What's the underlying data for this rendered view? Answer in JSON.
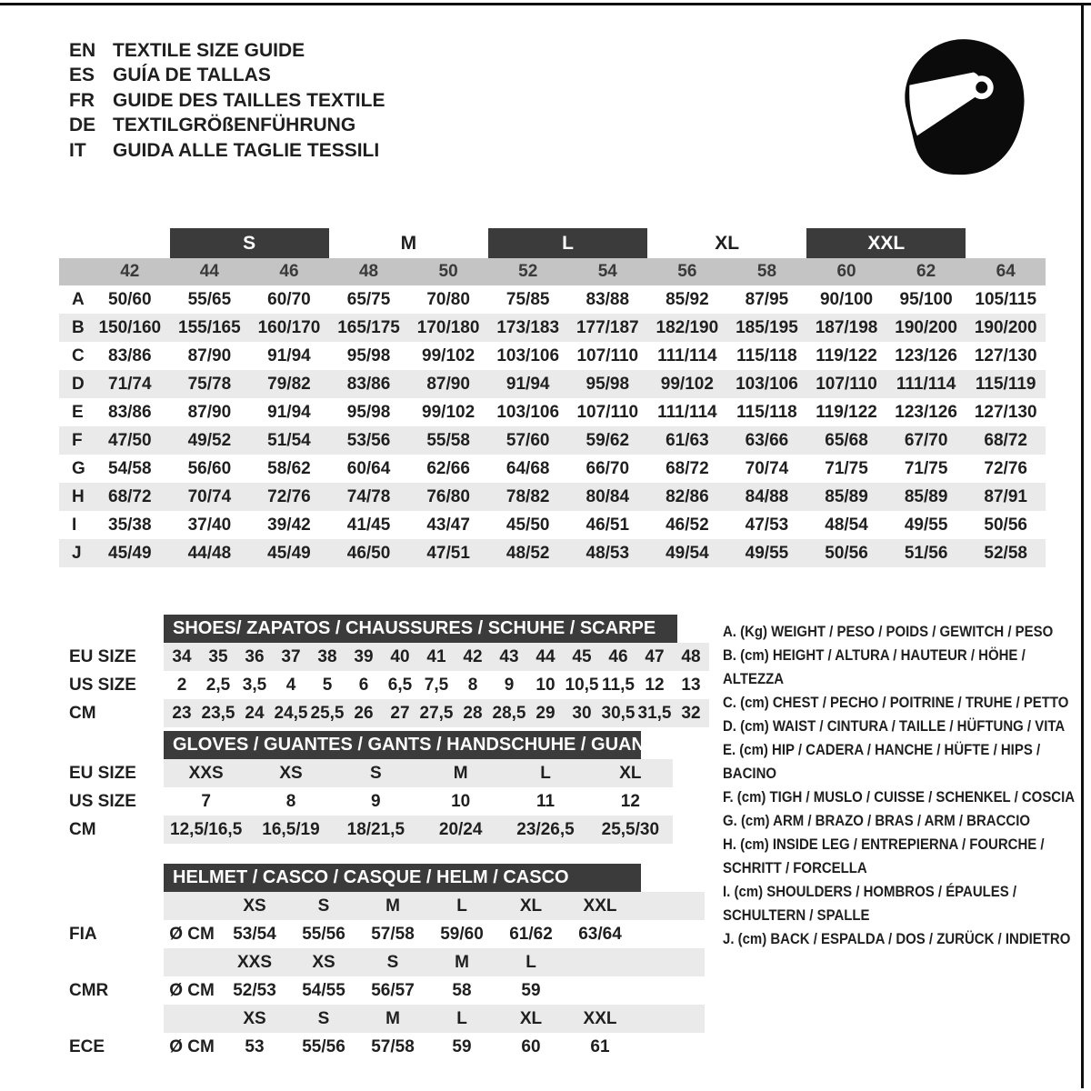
{
  "languages": [
    {
      "code": "EN",
      "title": "TEXTILE SIZE GUIDE"
    },
    {
      "code": "ES",
      "title": "GUÍA DE TALLAS"
    },
    {
      "code": "FR",
      "title": "GUIDE DES TAILLES TEXTILE"
    },
    {
      "code": "DE",
      "title": "TEXTILGRÖßENFÜHRUNG"
    },
    {
      "code": "IT",
      "title": "GUIDA ALLE TAGLIE TESSILI"
    }
  ],
  "size_table": {
    "groups": [
      {
        "label": "S",
        "dark": true
      },
      {
        "label": "M",
        "dark": false
      },
      {
        "label": "L",
        "dark": true
      },
      {
        "label": "XL",
        "dark": false
      },
      {
        "label": "XXL",
        "dark": true
      }
    ],
    "sizes": [
      "42",
      "44",
      "46",
      "48",
      "50",
      "52",
      "54",
      "56",
      "58",
      "60",
      "62",
      "64"
    ],
    "rows": [
      {
        "letter": "A",
        "values": [
          "50/60",
          "55/65",
          "60/70",
          "65/75",
          "70/80",
          "75/85",
          "83/88",
          "85/92",
          "87/95",
          "90/100",
          "95/100",
          "105/115"
        ]
      },
      {
        "letter": "B",
        "values": [
          "150/160",
          "155/165",
          "160/170",
          "165/175",
          "170/180",
          "173/183",
          "177/187",
          "182/190",
          "185/195",
          "187/198",
          "190/200",
          "190/200"
        ]
      },
      {
        "letter": "C",
        "values": [
          "83/86",
          "87/90",
          "91/94",
          "95/98",
          "99/102",
          "103/106",
          "107/110",
          "111/114",
          "115/118",
          "119/122",
          "123/126",
          "127/130"
        ]
      },
      {
        "letter": "D",
        "values": [
          "71/74",
          "75/78",
          "79/82",
          "83/86",
          "87/90",
          "91/94",
          "95/98",
          "99/102",
          "103/106",
          "107/110",
          "111/114",
          "115/119"
        ]
      },
      {
        "letter": "E",
        "values": [
          "83/86",
          "87/90",
          "91/94",
          "95/98",
          "99/102",
          "103/106",
          "107/110",
          "111/114",
          "115/118",
          "119/122",
          "123/126",
          "127/130"
        ]
      },
      {
        "letter": "F",
        "values": [
          "47/50",
          "49/52",
          "51/54",
          "53/56",
          "55/58",
          "57/60",
          "59/62",
          "61/63",
          "63/66",
          "65/68",
          "67/70",
          "68/72"
        ]
      },
      {
        "letter": "G",
        "values": [
          "54/58",
          "56/60",
          "58/62",
          "60/64",
          "62/66",
          "64/68",
          "66/70",
          "68/72",
          "70/74",
          "71/75",
          "71/75",
          "72/76"
        ]
      },
      {
        "letter": "H",
        "values": [
          "68/72",
          "70/74",
          "72/76",
          "74/78",
          "76/80",
          "78/82",
          "80/84",
          "82/86",
          "84/88",
          "85/89",
          "85/89",
          "87/91"
        ]
      },
      {
        "letter": "I",
        "values": [
          "35/38",
          "37/40",
          "39/42",
          "41/45",
          "43/47",
          "45/50",
          "46/51",
          "46/52",
          "47/53",
          "48/54",
          "49/55",
          "50/56"
        ]
      },
      {
        "letter": "J",
        "values": [
          "45/49",
          "44/48",
          "45/49",
          "46/50",
          "47/51",
          "48/52",
          "48/53",
          "49/54",
          "49/55",
          "50/56",
          "51/56",
          "52/58"
        ]
      }
    ]
  },
  "shoes": {
    "header": "SHOES/ ZAPATOS / CHAUSSURES / SCHUHE / SCARPE",
    "rows": [
      {
        "label": "EU SIZE",
        "values": [
          "34",
          "35",
          "36",
          "37",
          "38",
          "39",
          "40",
          "41",
          "42",
          "43",
          "44",
          "45",
          "46",
          "47",
          "48"
        ]
      },
      {
        "label": "US SIZE",
        "values": [
          "2",
          "2,5",
          "3,5",
          "4",
          "5",
          "6",
          "6,5",
          "7,5",
          "8",
          "9",
          "10",
          "10,5",
          "11,5",
          "12",
          "13"
        ]
      },
      {
        "label": "CM",
        "values": [
          "23",
          "23,5",
          "24",
          "24,5",
          "25,5",
          "26",
          "27",
          "27,5",
          "28",
          "28,5",
          "29",
          "30",
          "30,5",
          "31,5",
          "32"
        ]
      }
    ]
  },
  "gloves": {
    "header": "GLOVES / GUANTES / GANTS / HANDSCHUHE / GUANTI",
    "rows": [
      {
        "label": "EU SIZE",
        "values": [
          "XXS",
          "XS",
          "S",
          "M",
          "L",
          "XL"
        ]
      },
      {
        "label": "US SIZE",
        "values": [
          "7",
          "8",
          "9",
          "10",
          "11",
          "12"
        ]
      },
      {
        "label": "CM",
        "values": [
          "12,5/16,5",
          "16,5/19",
          "18/21,5",
          "20/24",
          "23/26,5",
          "25,5/30"
        ]
      }
    ]
  },
  "helmet": {
    "header": "HELMET / CASCO / CASQUE / HELM / CASCO",
    "standards": [
      {
        "label": "FIA",
        "unit": "Ø CM",
        "sizes": [
          "XS",
          "S",
          "M",
          "L",
          "XL",
          "XXL"
        ],
        "values": [
          "53/54",
          "55/56",
          "57/58",
          "59/60",
          "61/62",
          "63/64"
        ]
      },
      {
        "label": "CMR",
        "unit": "Ø CM",
        "sizes": [
          "XXS",
          "XS",
          "S",
          "M",
          "L"
        ],
        "values": [
          "52/53",
          "54/55",
          "56/57",
          "58",
          "59"
        ]
      },
      {
        "label": "ECE",
        "unit": "Ø CM",
        "sizes": [
          "XS",
          "S",
          "M",
          "L",
          "XL",
          "XXL"
        ],
        "values": [
          "53",
          "55/56",
          "57/58",
          "59",
          "60",
          "61"
        ]
      }
    ]
  },
  "legend": {
    "items": [
      "A. (Kg) WEIGHT / PESO / POIDS / GEWITCH / PESO",
      "B. (cm) HEIGHT / ALTURA / HAUTEUR / HÖHE / ALTEZZA",
      "C. (cm) CHEST / PECHO / POITRINE / TRUHE / PETTO",
      "D. (cm) WAIST / CINTURA / TAILLE / HÜFTUNG / VITA",
      "E. (cm) HIP / CADERA / HANCHE / HÜFTE / HIPS / BACINO",
      "F. (cm) TIGH / MUSLO / CUISSE / SCHENKEL / COSCIA",
      "G. (cm) ARM / BRAZO / BRAS / ARM / BRACCIO",
      "H. (cm) INSIDE LEG / ENTREPIERNA / FOURCHE / SCHRITT / FORCELLA",
      "I. (cm) SHOULDERS / HOMBROS / ÉPAULES / SCHULTERN / SPALLE",
      "J. (cm) BACK / ESPALDA / DOS / ZURÜCK / INDIETRO"
    ]
  },
  "colors": {
    "dark_bar": "#3b3b3b",
    "size_band": "#c4c4c4",
    "stripe": "#eaeaea",
    "icon": "#0b0b0b"
  }
}
